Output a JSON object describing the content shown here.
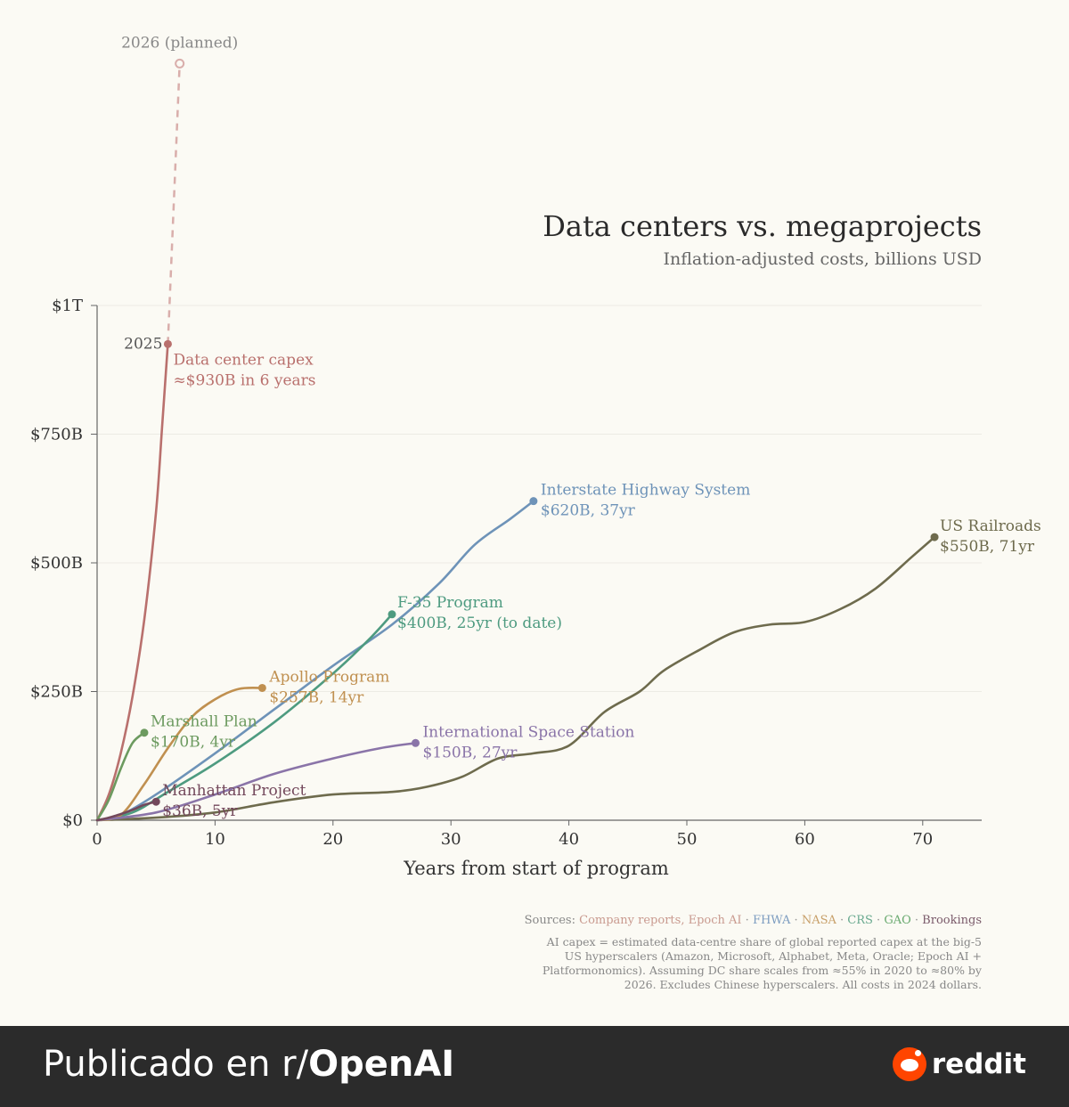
{
  "chart_data": {
    "type": "line",
    "title": "Data centers vs. megaprojects",
    "subtitle": "Inflation-adjusted costs, billions USD",
    "xlabel": "Years from start of program",
    "ylabel": "",
    "xlim": [
      0,
      75
    ],
    "ylim": [
      0,
      1000
    ],
    "x_ticks": [
      0,
      10,
      20,
      30,
      40,
      50,
      60,
      70
    ],
    "x_tick_labels": [
      "0",
      "10",
      "20",
      "30",
      "40",
      "50",
      "60",
      "70"
    ],
    "y_ticks": [
      0,
      250,
      500,
      750,
      1000
    ],
    "y_tick_labels": [
      "$0",
      "$250B",
      "$500B",
      "$750B",
      "$1T"
    ],
    "grid": "horizontal",
    "series": [
      {
        "name": "Data center capex",
        "color": "#b9706d",
        "label": [
          "Data center capex",
          "≈$930B in 6 years"
        ],
        "x": [
          0,
          1,
          2,
          3,
          4,
          5,
          5.5,
          6
        ],
        "y": [
          0,
          50,
          130,
          240,
          390,
          600,
          760,
          925
        ]
      },
      {
        "name": "Interstate Highway System",
        "color": "#6e93b8",
        "label": [
          "Interstate Highway System",
          "$620B, 37yr"
        ],
        "x": [
          0,
          2,
          5,
          10,
          15,
          20,
          25,
          29,
          32,
          35,
          37
        ],
        "y": [
          0,
          10,
          50,
          130,
          215,
          300,
          380,
          460,
          535,
          585,
          620
        ]
      },
      {
        "name": "F-35 Program",
        "color": "#4e9b80",
        "label": [
          "F-35 Program",
          "$400B, 25yr (to date)"
        ],
        "x": [
          0,
          3,
          6,
          10,
          15,
          20,
          23,
          25
        ],
        "y": [
          0,
          15,
          55,
          110,
          190,
          285,
          350,
          400
        ]
      },
      {
        "name": "US Railroads",
        "color": "#6e6b4d",
        "label": [
          "US Railroads",
          "$550B, 71yr"
        ],
        "x": [
          0,
          5,
          10,
          15,
          20,
          25,
          28,
          31,
          34,
          37,
          40,
          43,
          46,
          48,
          51,
          54,
          57,
          60,
          63,
          66,
          69,
          71
        ],
        "y": [
          0,
          5,
          15,
          35,
          50,
          55,
          65,
          85,
          120,
          130,
          145,
          210,
          250,
          290,
          330,
          365,
          380,
          385,
          410,
          450,
          510,
          550
        ]
      },
      {
        "name": "Apollo Program",
        "color": "#c09050",
        "label": [
          "Apollo Program",
          "$257B, 14yr"
        ],
        "x": [
          0,
          2,
          4,
          6,
          8,
          10,
          12,
          14
        ],
        "y": [
          0,
          10,
          70,
          140,
          200,
          235,
          255,
          257
        ]
      },
      {
        "name": "International Space Station",
        "color": "#8a74a8",
        "label": [
          "International Space Station",
          "$150B, 27yr"
        ],
        "x": [
          0,
          5,
          10,
          15,
          20,
          24,
          27
        ],
        "y": [
          0,
          15,
          50,
          90,
          120,
          140,
          150
        ]
      },
      {
        "name": "Marshall Plan",
        "color": "#6c9a5f",
        "label": [
          "Marshall Plan",
          "$170B, 4yr"
        ],
        "x": [
          0,
          1,
          2,
          3,
          4
        ],
        "y": [
          0,
          40,
          100,
          150,
          170
        ]
      },
      {
        "name": "Manhattan Project",
        "color": "#73485b",
        "label": [
          "Manhattan Project",
          "$36B, 5yr"
        ],
        "x": [
          0,
          1,
          2,
          3,
          4,
          5
        ],
        "y": [
          0,
          5,
          12,
          20,
          30,
          36
        ]
      }
    ],
    "projection": {
      "series": "Data center capex",
      "from": [
        6,
        925
      ],
      "to": [
        7,
        1470
      ],
      "start_label": "2025",
      "end_label": "2026 (planned)",
      "color": "#d9aeab"
    }
  },
  "sources": {
    "prefix": "Sources:",
    "items": [
      {
        "text": "Company reports, Epoch AI",
        "color": "#c99a8f"
      },
      {
        "text": "FHWA",
        "color": "#7c9cc0"
      },
      {
        "text": "NASA",
        "color": "#c8a06a"
      },
      {
        "text": "CRS",
        "color": "#6aaa90"
      },
      {
        "text": "GAO",
        "color": "#6aaa70"
      },
      {
        "text": "Brookings",
        "color": "#7a5a6a"
      }
    ],
    "separator": "·"
  },
  "note": [
    "AI capex = estimated data-centre share of global reported capex at the big-5",
    "US hyperscalers (Amazon, Microsoft, Alphabet, Meta, Oracle; Epoch AI +",
    "Platformonomics). Assuming DC share scales from ≈55% in 2020 to ≈80% by",
    "2026. Excludes Chinese hyperscalers. All costs in 2024 dollars."
  ],
  "footer": {
    "prefix": "Publicado en r/",
    "subreddit": "OpenAI",
    "brand": "reddit"
  }
}
